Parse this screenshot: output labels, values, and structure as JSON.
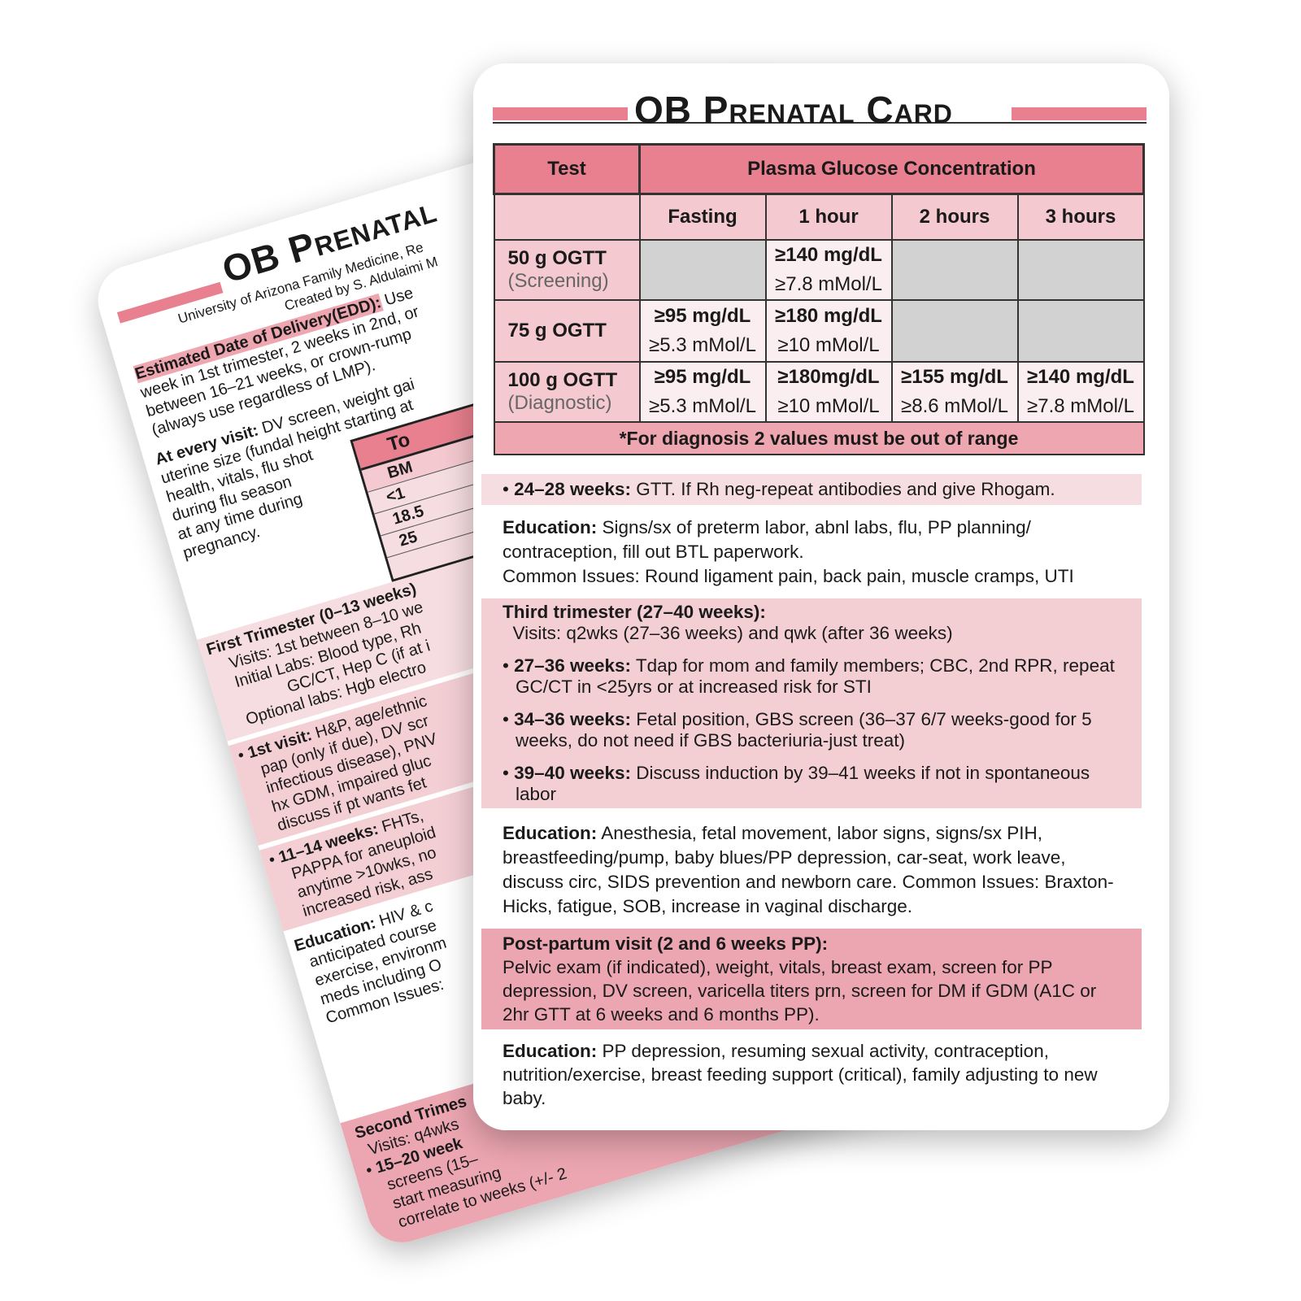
{
  "back_card": {
    "title": "OB Prenatal",
    "affiliation": "University of Arizona Family Medicine, Re",
    "author": "Created by S. Aldulaimi M",
    "edd_label": "Estimated Date of Delivery(EDD):",
    "edd_text": [
      "Use",
      "week in 1st trimester, 2 weeks in 2nd, or",
      "between 16–21 weeks, or crown-rump",
      "(always use regardless of LMP)."
    ],
    "every_visit_label": "At every visit:",
    "every_visit_text": [
      "DV screen, weight gai",
      "uterine size (fundal height starting at",
      "health, vitals, flu shot",
      "during flu season",
      "at any time during",
      "pregnancy."
    ],
    "table_header": "To",
    "table_sub": "BM",
    "table_rows": [
      "<1",
      "18.5",
      "25",
      ""
    ],
    "first_trimester": {
      "title": "First Trimester (0–13 weeks)",
      "lines": [
        "Visits: 1st between 8–10 we",
        "Initial Labs: Blood type, Rh",
        "GC/CT, Hep C (if at i",
        "Optional labs: Hgb electro"
      ]
    },
    "first_visit": {
      "label": "1st visit:",
      "lines": [
        "H&P, age/ethnic",
        "pap (only if due), DV scr",
        "infectious disease), PNV",
        "hx GDM, impaired gluc",
        "discuss if pt wants fet"
      ]
    },
    "weeks_11_14": {
      "label": "11–14 weeks:",
      "lines": [
        "FHTs,",
        "PAPPA for aneuploid",
        "anytime >10wks, no",
        "increased risk, ass"
      ]
    },
    "education": {
      "label": "Education:",
      "lines": [
        "HIV & c",
        "anticipated course",
        "exercise, environm",
        "meds including O",
        "Common Issues:"
      ]
    },
    "second_trimester": {
      "title": "Second Trimes",
      "lines": [
        "Visits: q4wks"
      ]
    },
    "weeks_15_20": {
      "label": "15–20 week",
      "lines": [
        "screens (15–",
        "start measuring",
        "correlate to weeks (+/- 2"
      ]
    }
  },
  "front_card": {
    "title": "OB Prenatal Card",
    "table": {
      "col_test": "Test",
      "col_main": "Plasma Glucose Concentration",
      "sub_headers": [
        "Fasting",
        "1 hour",
        "2 hours",
        "3 hours"
      ],
      "rows": [
        {
          "test": "50 g OGTT",
          "note": "(Screening)",
          "cells": [
            null,
            [
              "≥140 mg/dL",
              "≥7.8 mMol/L"
            ],
            null,
            null
          ]
        },
        {
          "test": "75 g OGTT",
          "note": "",
          "cells": [
            [
              "≥95 mg/dL",
              "≥5.3 mMol/L"
            ],
            [
              "≥180 mg/dL",
              "≥10 mMol/L"
            ],
            null,
            null
          ]
        },
        {
          "test": "100 g OGTT",
          "note": "(Diagnostic)",
          "cells": [
            [
              "≥95 mg/dL",
              "≥5.3 mMol/L"
            ],
            [
              "≥180mg/dL",
              "≥10 mMol/L"
            ],
            [
              "≥155 mg/dL",
              "≥8.6 mMol/L"
            ],
            [
              "≥140 mg/dL",
              "≥7.8 mMol/L"
            ]
          ]
        }
      ],
      "footnote": "*For diagnosis 2 values must be out of range"
    },
    "weeks_24_28": {
      "label": "24–28 weeks:",
      "text": "GTT. If Rh neg-repeat antibodies and give Rhogam."
    },
    "education1": {
      "label": "Education:",
      "text": "Signs/sx of preterm labor, abnl labs, flu, PP planning/ contraception, fill out BTL paperwork.",
      "issues": "Common Issues: Round ligament pain, back pain, muscle cramps, UTI"
    },
    "third_trimester": {
      "title": "Third trimester (27–40 weeks):",
      "visits": "Visits: q2wks (27–36 weeks) and qwk (after 36 weeks)",
      "items": [
        {
          "label": "27–36 weeks:",
          "text": "Tdap for mom and family members; CBC, 2nd RPR, repeat GC/CT in <25yrs or at increased risk for STI"
        },
        {
          "label": "34–36 weeks:",
          "text": "Fetal position, GBS screen (36–37 6/7 weeks-good for 5 weeks, do not need if GBS bacteriuria-just treat)"
        },
        {
          "label": "39–40 weeks:",
          "text": "Discuss induction by 39–41 weeks if not in spontaneous labor"
        }
      ]
    },
    "education2": {
      "label": "Education:",
      "text": "Anesthesia, fetal movement, labor signs, signs/sx PIH, breastfeeding/pump, baby blues/PP depression, car-seat, work leave, discuss circ, SIDS prevention and newborn care. Common Issues: Braxton-Hicks, fatigue, SOB, increase in vaginal discharge."
    },
    "postpartum": {
      "title": "Post-partum visit (2 and 6 weeks PP):",
      "text": "Pelvic exam (if indicated), weight, vitals, breast exam, screen for PP depression, DV screen, varicella titers prn, screen for DM if GDM (A1C or 2hr GTT at 6 weeks and 6 months PP)."
    },
    "education3": {
      "label": "Education:",
      "text": "PP depression, resuming sexual activity, contraception, nutrition/exercise, breast feeding support (critical), family adjusting to new baby."
    }
  },
  "colors": {
    "accent_pink": "#e8808f",
    "light_pink": "#f3cfd4",
    "gray_cell": "#d2d2d2"
  }
}
